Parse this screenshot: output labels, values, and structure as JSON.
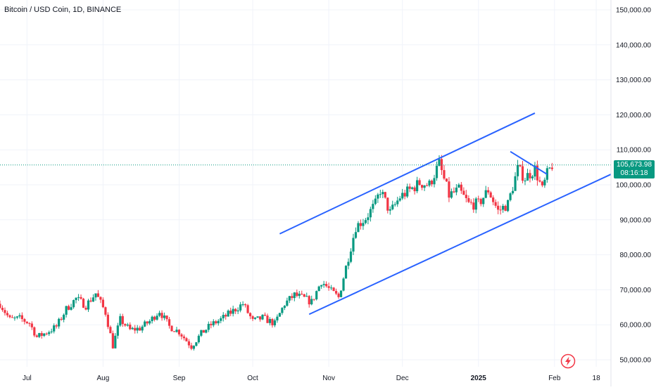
{
  "header": {
    "title": "Bitcoin / USD Coin, 1D, BINANCE"
  },
  "current_price": {
    "value": "105,673.98",
    "countdown": "08:16:18"
  },
  "colors": {
    "up": "#089981",
    "down": "#f23645",
    "trendline": "#2962ff",
    "price_line": "#089981",
    "grid": "#f0f3fa"
  },
  "icons": {
    "logo": "tradingview-lightning-icon"
  },
  "chart_data": {
    "type": "candlestick",
    "title": "Bitcoin / USD Coin, 1D, BINANCE",
    "y_ticks": [
      "150,000.00",
      "140,000.00",
      "130,000.00",
      "120,000.00",
      "110,000.00",
      "100,000.00",
      "90,000.00",
      "80,000.00",
      "70,000.00",
      "60,000.00",
      "50,000.00"
    ],
    "y_tick_values": [
      150000,
      140000,
      130000,
      120000,
      110000,
      100000,
      90000,
      80000,
      70000,
      60000,
      50000
    ],
    "x_ticks": [
      {
        "label": "Jul",
        "date": "2024-07-01"
      },
      {
        "label": "Aug",
        "date": "2024-08-01"
      },
      {
        "label": "Sep",
        "date": "2024-09-01"
      },
      {
        "label": "Oct",
        "date": "2024-10-01"
      },
      {
        "label": "Nov",
        "date": "2024-11-01"
      },
      {
        "label": "Dec",
        "date": "2024-12-01"
      },
      {
        "label": "2025",
        "date": "2025-01-01",
        "bold": true
      },
      {
        "label": "Feb",
        "date": "2025-02-01"
      },
      {
        "label": "18",
        "date": "2025-02-18"
      }
    ],
    "ylim": [
      48500,
      152500
    ],
    "xlim": [
      "2024-06-20",
      "2025-02-24"
    ],
    "grid": true,
    "current_price": 105673.98,
    "trendlines": [
      {
        "start": [
          "2024-10-12",
          86000
        ],
        "end": [
          "2025-01-24",
          120500
        ]
      },
      {
        "start": [
          "2024-10-24",
          63000
        ],
        "end": [
          "2025-02-24",
          103000
        ]
      },
      {
        "start": [
          "2025-01-14",
          109500
        ],
        "end": [
          "2025-01-29",
          103000
        ]
      }
    ],
    "price_points": [
      [
        "2024-06-20",
        66000
      ],
      [
        "2024-06-24",
        61500
      ],
      [
        "2024-06-28",
        61800
      ],
      [
        "2024-07-02",
        60500
      ],
      [
        "2024-07-05",
        56500
      ],
      [
        "2024-07-09",
        57800
      ],
      [
        "2024-07-13",
        59500
      ],
      [
        "2024-07-17",
        64500
      ],
      [
        "2024-07-21",
        67500
      ],
      [
        "2024-07-25",
        65500
      ],
      [
        "2024-07-29",
        69000
      ],
      [
        "2024-08-02",
        63500
      ],
      [
        "2024-08-05",
        54000
      ],
      [
        "2024-08-08",
        61500
      ],
      [
        "2024-08-12",
        58500
      ],
      [
        "2024-08-16",
        59000
      ],
      [
        "2024-08-20",
        61000
      ],
      [
        "2024-08-24",
        64000
      ],
      [
        "2024-08-28",
        59500
      ],
      [
        "2024-09-01",
        58000
      ],
      [
        "2024-09-06",
        53800
      ],
      [
        "2024-09-10",
        57500
      ],
      [
        "2024-09-14",
        60000
      ],
      [
        "2024-09-18",
        61500
      ],
      [
        "2024-09-22",
        63500
      ],
      [
        "2024-09-27",
        66000
      ],
      [
        "2024-10-01",
        61000
      ],
      [
        "2024-10-05",
        62000
      ],
      [
        "2024-10-10",
        60300
      ],
      [
        "2024-10-14",
        66000
      ],
      [
        "2024-10-18",
        68500
      ],
      [
        "2024-10-22",
        67500
      ],
      [
        "2024-10-25",
        66500
      ],
      [
        "2024-10-29",
        72500
      ],
      [
        "2024-11-02",
        69500
      ],
      [
        "2024-11-05",
        67800
      ],
      [
        "2024-11-08",
        76500
      ],
      [
        "2024-11-12",
        88000
      ],
      [
        "2024-11-16",
        90500
      ],
      [
        "2024-11-20",
        94500
      ],
      [
        "2024-11-22",
        98500
      ],
      [
        "2024-11-26",
        92000
      ],
      [
        "2024-11-30",
        96500
      ],
      [
        "2024-12-04",
        98500
      ],
      [
        "2024-12-08",
        100500
      ],
      [
        "2024-12-12",
        100000
      ],
      [
        "2024-12-16",
        106000
      ],
      [
        "2024-12-20",
        97000
      ],
      [
        "2024-12-24",
        98500
      ],
      [
        "2024-12-28",
        94500
      ],
      [
        "2025-01-01",
        94500
      ],
      [
        "2025-01-05",
        98500
      ],
      [
        "2025-01-09",
        92500
      ],
      [
        "2025-01-13",
        94500
      ],
      [
        "2025-01-17",
        104500
      ],
      [
        "2025-01-20",
        102000
      ],
      [
        "2025-01-24",
        104500
      ],
      [
        "2025-01-27",
        98500
      ],
      [
        "2025-01-29",
        103000
      ],
      [
        "2025-01-31",
        105674
      ]
    ]
  }
}
